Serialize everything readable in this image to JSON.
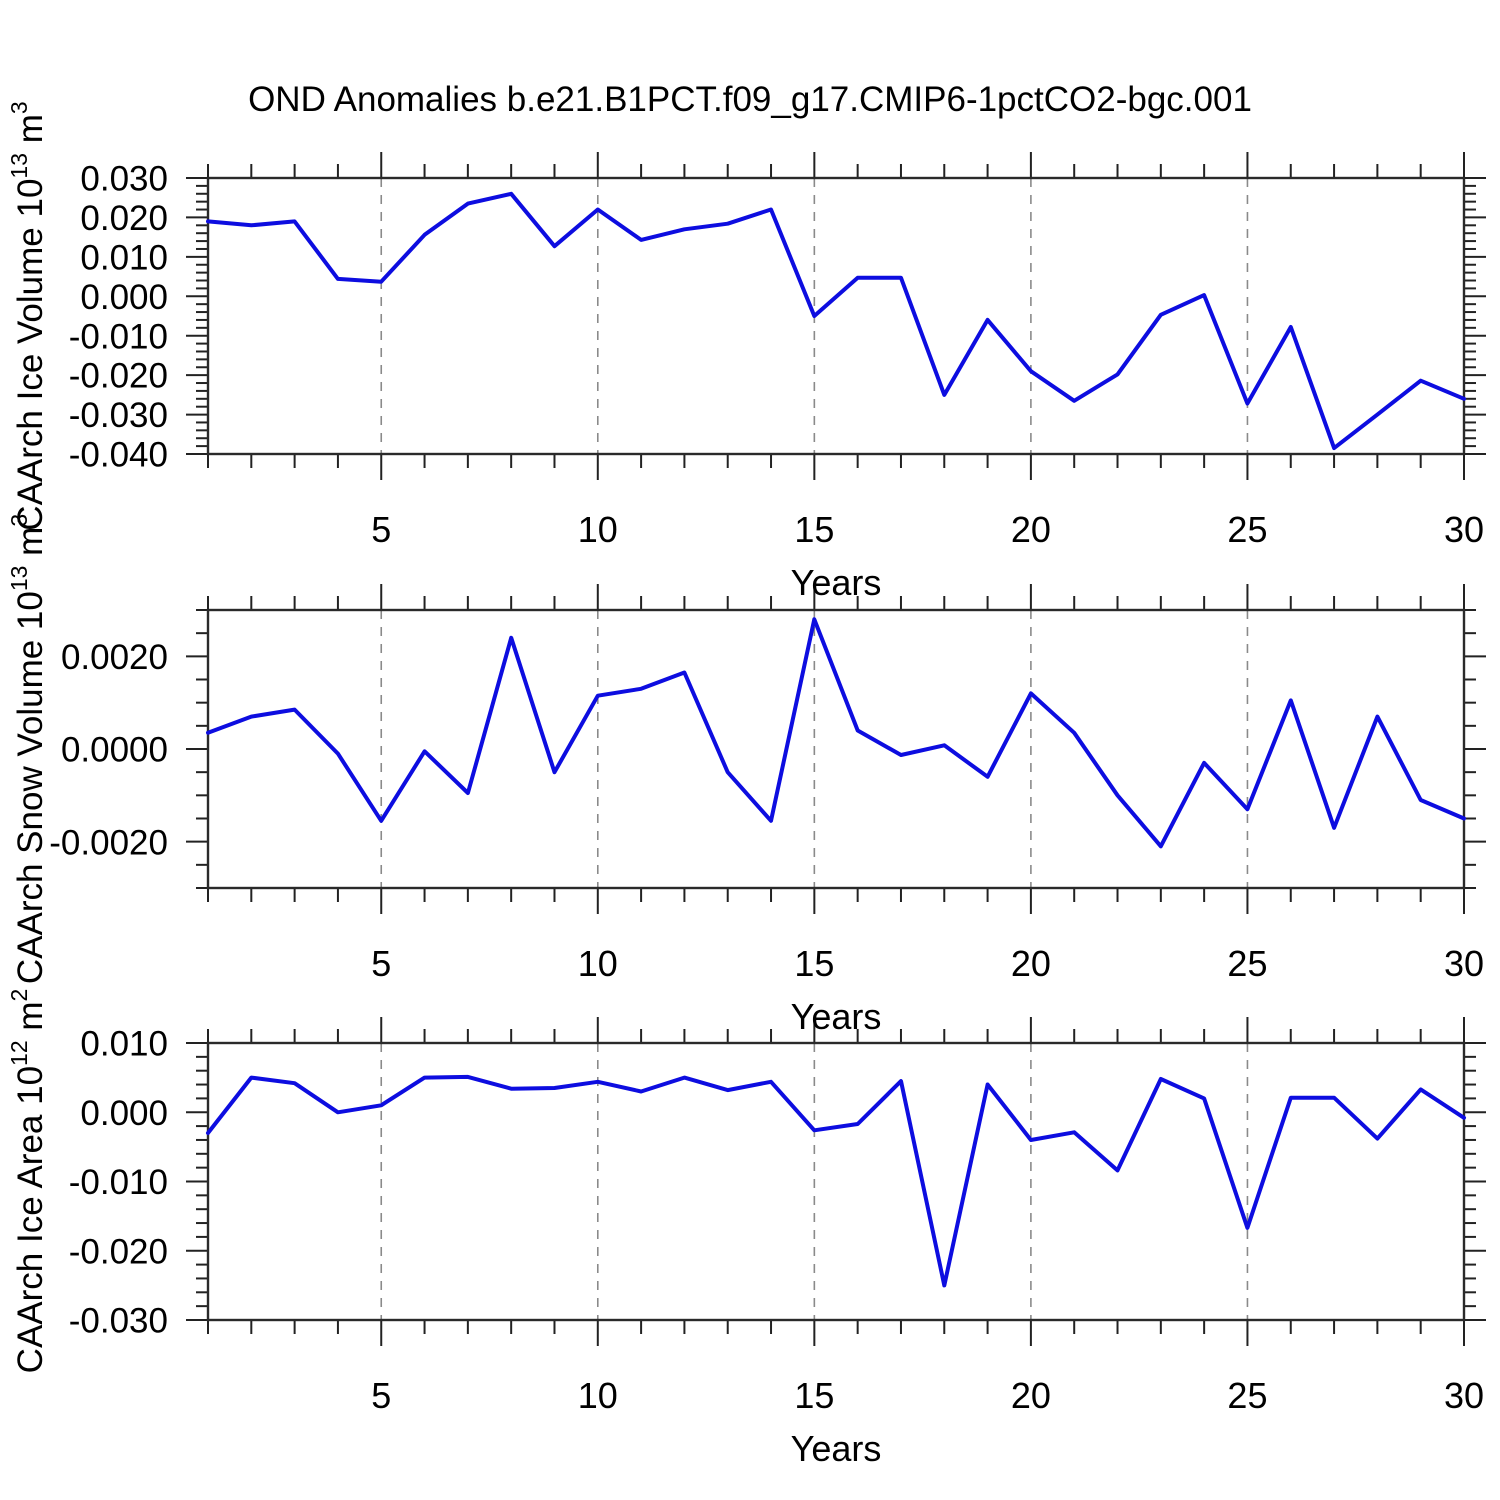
{
  "title": "OND Anomalies b.e21.B1PCT.f09_g17.CMIP6-1pctCO2-bgc.001",
  "xlabel": "Years",
  "colors": {
    "line": "#0d0de0",
    "grid": "#8a8a8a",
    "axis": "#2a2a2a",
    "tick": "#222222"
  },
  "x_major_ticks": [
    5,
    10,
    15,
    20,
    25,
    30
  ],
  "x_gridline_years": [
    5,
    10,
    15,
    20,
    25
  ],
  "years": [
    1,
    2,
    3,
    4,
    5,
    6,
    7,
    8,
    9,
    10,
    11,
    12,
    13,
    14,
    15,
    16,
    17,
    18,
    19,
    20,
    21,
    22,
    23,
    24,
    25,
    26,
    27,
    28,
    29,
    30
  ],
  "chart_data": [
    {
      "type": "line",
      "name": "caarch-ice-volume",
      "ylabel": {
        "base": "CAArch Ice Volume 10",
        "exp": "13",
        "unit": " m",
        "unit_exp": "3"
      },
      "xlabel": "Years",
      "ylim": [
        -0.04,
        0.03
      ],
      "y_major_tick_values": [
        0.03,
        0.02,
        0.01,
        0.0,
        -0.01,
        -0.02,
        -0.03,
        -0.04
      ],
      "y_tick_labels": [
        "0.030",
        "0.020",
        "0.010",
        "0.000",
        "-0.010",
        "-0.020",
        "-0.030",
        "-0.040"
      ],
      "y_minor_step": 0.002,
      "grid": "vertical-dashed",
      "legend": "none",
      "x": [
        1,
        2,
        3,
        4,
        5,
        6,
        7,
        8,
        9,
        10,
        11,
        12,
        13,
        14,
        15,
        16,
        17,
        18,
        19,
        20,
        21,
        22,
        23,
        24,
        25,
        26,
        27,
        28,
        29,
        30
      ],
      "values": [
        0.019,
        0.018,
        0.019,
        0.0044,
        0.0037,
        0.0156,
        0.0235,
        0.026,
        0.0127,
        0.022,
        0.0143,
        0.017,
        0.0184,
        0.022,
        -0.005,
        0.0047,
        0.0047,
        -0.025,
        -0.006,
        -0.019,
        -0.0265,
        -0.0198,
        -0.0047,
        0.0003,
        -0.0272,
        -0.0078,
        -0.0385,
        -0.03,
        -0.0214,
        -0.026
      ]
    },
    {
      "type": "line",
      "name": "caarch-snow-volume",
      "ylabel": {
        "base": "CAArch Snow Volume 10",
        "exp": "13",
        "unit": " m",
        "unit_exp": "3"
      },
      "xlabel": "Years",
      "ylim": [
        -0.003,
        0.003
      ],
      "y_major_tick_values": [
        0.002,
        0.0,
        -0.002
      ],
      "y_tick_labels": [
        "0.0020",
        "0.0000",
        "-0.0020"
      ],
      "y_minor_step": 0.0005,
      "grid": "vertical-dashed",
      "legend": "none",
      "x": [
        1,
        2,
        3,
        4,
        5,
        6,
        7,
        8,
        9,
        10,
        11,
        12,
        13,
        14,
        15,
        16,
        17,
        18,
        19,
        20,
        21,
        22,
        23,
        24,
        25,
        26,
        27,
        28,
        29,
        30
      ],
      "values": [
        0.00035,
        0.0007,
        0.00085,
        -0.0001,
        -0.00155,
        -5e-05,
        -0.00095,
        0.0024,
        -0.0005,
        0.00115,
        0.0013,
        0.00165,
        -0.0005,
        -0.00155,
        0.0028,
        0.0004,
        -0.00013,
        8e-05,
        -0.0006,
        0.0012,
        0.00035,
        -0.001,
        -0.0021,
        -0.0003,
        -0.0013,
        0.00105,
        -0.0017,
        0.0007,
        -0.0011,
        -0.0015
      ]
    },
    {
      "type": "line",
      "name": "caarch-ice-area",
      "ylabel": {
        "base": "CAArch Ice Area 10",
        "exp": "12",
        "unit": " m",
        "unit_exp": "2"
      },
      "xlabel": "Years",
      "ylim": [
        -0.03,
        0.01
      ],
      "y_major_tick_values": [
        0.01,
        0.0,
        -0.01,
        -0.02,
        -0.03
      ],
      "y_tick_labels": [
        "0.010",
        "0.000",
        "-0.010",
        "-0.020",
        "-0.030"
      ],
      "y_minor_step": 0.002,
      "grid": "vertical-dashed",
      "legend": "none",
      "x": [
        1,
        2,
        3,
        4,
        5,
        6,
        7,
        8,
        9,
        10,
        11,
        12,
        13,
        14,
        15,
        16,
        17,
        18,
        19,
        20,
        21,
        22,
        23,
        24,
        25,
        26,
        27,
        28,
        29,
        30
      ],
      "values": [
        -0.003,
        0.005,
        0.0042,
        0.0,
        0.001,
        0.005,
        0.0051,
        0.0034,
        0.0035,
        0.0044,
        0.003,
        0.005,
        0.0032,
        0.0044,
        -0.0026,
        -0.0017,
        0.0045,
        -0.025,
        0.004,
        -0.004,
        -0.0029,
        -0.0084,
        0.0048,
        0.002,
        -0.0167,
        0.0021,
        0.0021,
        -0.0038,
        0.0033,
        -0.0008
      ]
    }
  ]
}
